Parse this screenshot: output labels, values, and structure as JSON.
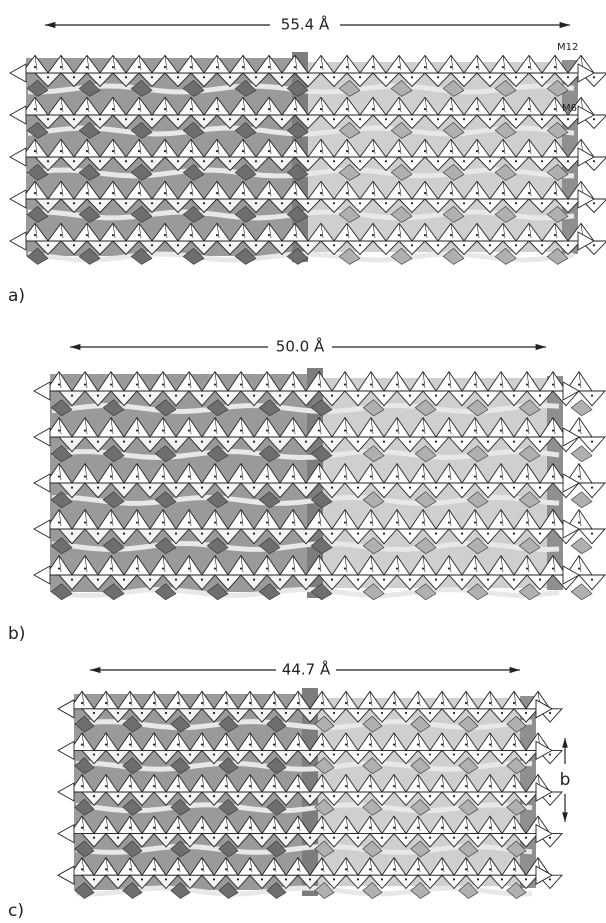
{
  "panels": [
    {
      "label": "a)",
      "dimension": "55.4 Å",
      "annotations": [
        "M12",
        "M6"
      ]
    },
    {
      "label": "b)",
      "dimension": "50.0 Å"
    },
    {
      "label": "c)",
      "dimension": "44.7 Å",
      "axis_label": "b"
    }
  ]
}
